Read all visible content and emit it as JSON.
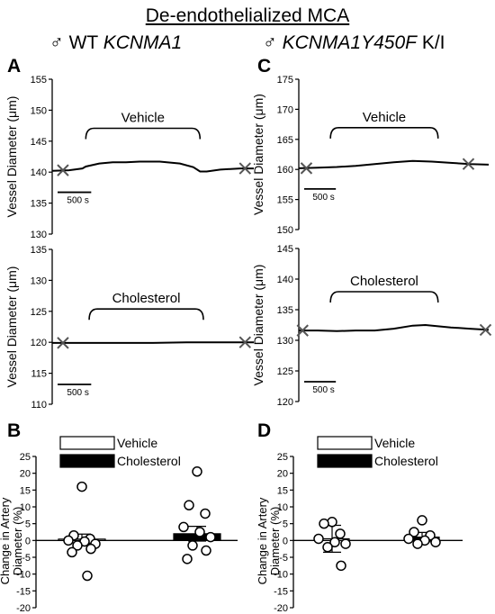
{
  "figure": {
    "title": "De-endothelialized MCA",
    "left_header": {
      "symbol": "♂",
      "prefix": "WT",
      "gene": "KCNMA1",
      "suffix": ""
    },
    "right_header": {
      "symbol": "♂",
      "prefix": "",
      "gene": "KCNMA1Y450F",
      "suffix": "K/I"
    }
  },
  "chart_data": [
    {
      "panel": "A",
      "type": "line",
      "group": "WT KCNMA1",
      "ylabel": "Vessel Diameter (μm)",
      "ylim": [
        130,
        155
      ],
      "yticks": [
        130,
        135,
        140,
        145,
        150,
        155
      ],
      "x_units": "s",
      "x_range": [
        0,
        3000
      ],
      "scale_bar": "500 s",
      "treatment_label": "Vehicle",
      "treatment_window": [
        500,
        2200
      ],
      "series": [
        {
          "x": [
            0,
            250,
            450,
            500,
            700,
            900,
            1100,
            1300,
            1600,
            1900,
            2100,
            2200,
            2300,
            2500,
            2800,
            3000
          ],
          "y": [
            140.2,
            140.3,
            140.6,
            140.9,
            141.4,
            141.6,
            141.6,
            141.7,
            141.7,
            141.4,
            140.8,
            140.1,
            140.1,
            140.4,
            140.6,
            140.6
          ]
        }
      ],
      "markers": [
        {
          "x": 160,
          "y": 140.3
        },
        {
          "x": 2870,
          "y": 140.6
        }
      ]
    },
    {
      "panel": "A",
      "type": "line",
      "group": "WT KCNMA1",
      "ylabel": "Vessel Diameter (μm)",
      "ylim": [
        110,
        135
      ],
      "yticks": [
        110,
        115,
        120,
        125,
        130,
        135
      ],
      "x_units": "s",
      "x_range": [
        0,
        3000
      ],
      "scale_bar": "500 s",
      "treatment_label": "Cholesterol",
      "treatment_window": [
        550,
        2250
      ],
      "series": [
        {
          "x": [
            0,
            500,
            1000,
            1500,
            2000,
            2500,
            3000
          ],
          "y": [
            119.9,
            119.9,
            119.9,
            119.9,
            120.0,
            120.0,
            120.0
          ]
        }
      ],
      "markers": [
        {
          "x": 160,
          "y": 119.9
        },
        {
          "x": 2870,
          "y": 120.0
        }
      ]
    },
    {
      "panel": "C",
      "type": "line",
      "group": "KCNMA1Y450F K/I",
      "ylabel": "Vessel Diameter (μm)",
      "ylim": [
        150,
        175
      ],
      "yticks": [
        150,
        155,
        160,
        165,
        170,
        175
      ],
      "x_units": "s",
      "x_range": [
        0,
        3000
      ],
      "scale_bar": "500 s",
      "treatment_label": "Vehicle",
      "treatment_window": [
        500,
        2200
      ],
      "series": [
        {
          "x": [
            0,
            300,
            600,
            900,
            1200,
            1500,
            1800,
            2100,
            2400,
            2700,
            3000
          ],
          "y": [
            160.2,
            160.3,
            160.4,
            160.6,
            160.9,
            161.2,
            161.4,
            161.3,
            161.1,
            160.9,
            160.8
          ]
        }
      ],
      "markers": [
        {
          "x": 120,
          "y": 160.2
        },
        {
          "x": 2680,
          "y": 160.9
        }
      ]
    },
    {
      "panel": "C",
      "type": "line",
      "group": "KCNMA1Y450F K/I",
      "ylabel": "Vessel Diameter (μm)",
      "ylim": [
        120,
        145
      ],
      "yticks": [
        120,
        125,
        130,
        135,
        140,
        145
      ],
      "x_units": "s",
      "x_range": [
        0,
        3000
      ],
      "scale_bar": "500 s",
      "treatment_label": "Cholesterol",
      "treatment_window": [
        500,
        2200
      ],
      "series": [
        {
          "x": [
            0,
            300,
            600,
            900,
            1200,
            1500,
            1800,
            2000,
            2200,
            2400,
            2700,
            3000
          ],
          "y": [
            131.6,
            131.6,
            131.5,
            131.6,
            131.6,
            131.9,
            132.4,
            132.5,
            132.3,
            132.1,
            131.9,
            131.7
          ]
        }
      ],
      "markers": [
        {
          "x": 60,
          "y": 131.6
        },
        {
          "x": 2950,
          "y": 131.7
        }
      ]
    },
    {
      "panel": "B",
      "type": "bar",
      "group": "WT KCNMA1",
      "ylabel": "Change in Artery Diameter (%)",
      "ylim": [
        -20,
        25
      ],
      "yticks": [
        -20,
        -15,
        -10,
        -5,
        0,
        5,
        10,
        15,
        20,
        25
      ],
      "legend": [
        "Vehicle",
        "Cholesterol"
      ],
      "series": [
        {
          "name": "Vehicle",
          "mean": 0.4,
          "sem": 1.5,
          "points": [
            16,
            1.5,
            0.5,
            0,
            -0.3,
            -1,
            -1.5,
            -2.5,
            -3.5,
            -10.5
          ]
        },
        {
          "name": "Cholesterol",
          "mean": 2.0,
          "sem": 2.2,
          "points": [
            20.5,
            10.5,
            8,
            4,
            2.5,
            1,
            -1.5,
            -3,
            -5.5
          ]
        }
      ]
    },
    {
      "panel": "D",
      "type": "bar",
      "group": "KCNMA1Y450F K/I",
      "ylabel": "Change in Artery Diameter (%)",
      "ylim": [
        -20,
        25
      ],
      "yticks": [
        -20,
        -15,
        -10,
        -5,
        0,
        5,
        10,
        15,
        20,
        25
      ],
      "legend": [
        "Vehicle",
        "Cholesterol"
      ],
      "series": [
        {
          "name": "Vehicle",
          "mean": 0.5,
          "sem": 4.0,
          "points": [
            5.5,
            5,
            2,
            0.5,
            -0.5,
            -1,
            -2,
            -7.5
          ]
        },
        {
          "name": "Cholesterol",
          "mean": 1.0,
          "sem": 1.4,
          "points": [
            6,
            2.5,
            1.5,
            0.5,
            0,
            -0.5,
            -1
          ]
        }
      ]
    }
  ]
}
